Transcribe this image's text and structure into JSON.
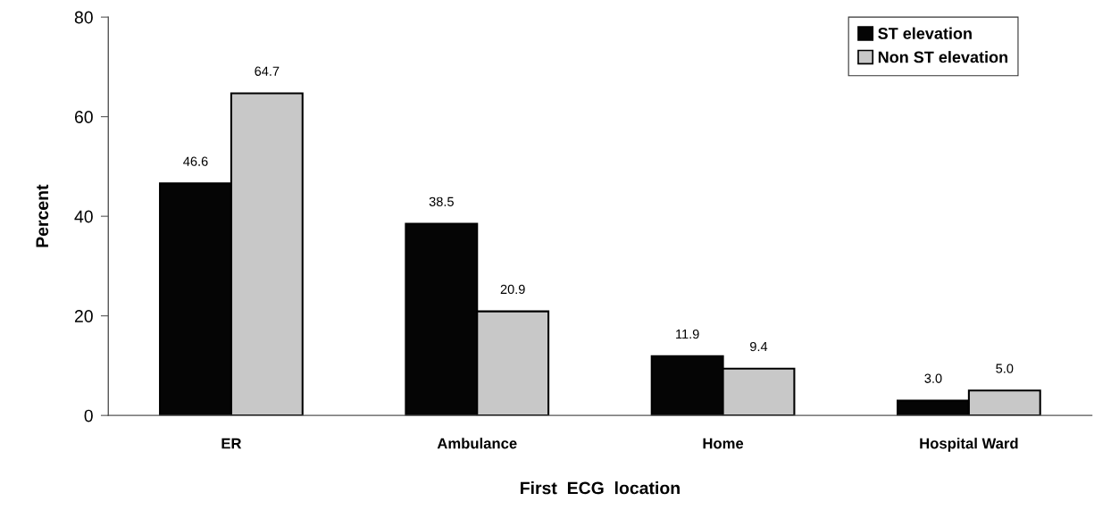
{
  "chart_data": {
    "type": "bar",
    "xlabel": "First  ECG  location",
    "ylabel": "Percent",
    "categories": [
      "ER",
      "Ambulance",
      "Home",
      "Hospital Ward"
    ],
    "series": [
      {
        "name": "ST elevation",
        "color": "#050505",
        "values": [
          46.6,
          38.5,
          11.9,
          3.0
        ],
        "value_labels": [
          "46.6",
          "38.5",
          "11.9",
          "3.0"
        ]
      },
      {
        "name": "Non ST elevation",
        "color": "#c8c8c8",
        "values": [
          64.7,
          20.9,
          9.4,
          5.0
        ],
        "value_labels": [
          "64.7",
          "20.9",
          "9.4",
          "5.0"
        ]
      }
    ],
    "ylim": [
      0,
      80
    ],
    "yticks": [
      0,
      20,
      40,
      60,
      80
    ],
    "grid": false,
    "legend": "top right"
  }
}
